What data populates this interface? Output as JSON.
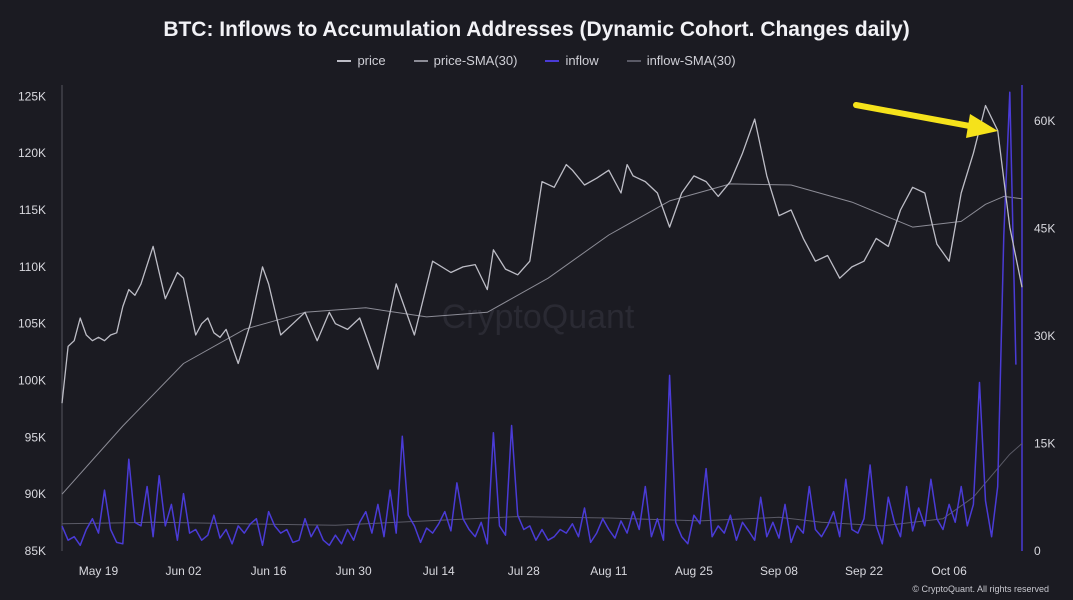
{
  "chart_data": {
    "type": "line",
    "title": "BTC: Inflows to Accumulation Addresses (Dynamic Cohort. Changes daily)",
    "legend": [
      "price",
      "price-SMA(30)",
      "inflow",
      "inflow-SMA(30)"
    ],
    "colors": {
      "price": "#bdbdc6",
      "price_sma": "#8c8c96",
      "inflow": "#4a3bd6",
      "inflow_sma": "#5a5a66",
      "arrow": "#f5e21b",
      "bg": "#1b1b22"
    },
    "x_ticks": [
      "May 19",
      "Jun 02",
      "Jun 16",
      "Jun 30",
      "Jul 14",
      "Jul 28",
      "Aug 11",
      "Aug 25",
      "Sep 08",
      "Sep 22",
      "Oct 06"
    ],
    "y_left_ticks": [
      "85K",
      "90K",
      "95K",
      "100K",
      "105K",
      "110K",
      "115K",
      "120K",
      "125K"
    ],
    "y_right_ticks": [
      "0",
      "15K",
      "30K",
      "45K",
      "60K"
    ],
    "y_left_range": [
      85000,
      126000
    ],
    "y_right_range": [
      0,
      65000
    ],
    "x_range_days": [
      0,
      158
    ],
    "series": [
      {
        "name": "price",
        "axis": "left",
        "x": [
          0,
          1,
          2,
          3,
          4,
          5,
          6,
          7,
          8,
          9,
          10,
          11,
          12,
          13,
          15,
          17,
          19,
          20,
          22,
          23,
          24,
          25,
          26,
          27,
          29,
          31,
          33,
          34,
          36,
          38,
          40,
          42,
          44,
          45,
          47,
          49,
          52,
          55,
          58,
          61,
          64,
          66,
          68,
          70,
          71,
          73,
          75,
          77,
          79,
          81,
          83,
          84,
          86,
          88,
          90,
          92,
          93,
          94,
          96,
          98,
          100,
          102,
          104,
          106,
          108,
          110,
          112,
          114,
          116,
          118,
          120,
          122,
          124,
          126,
          128,
          130,
          132,
          134,
          136,
          138,
          140,
          142,
          144,
          146,
          148,
          150,
          152,
          154,
          156,
          158
        ],
        "y": [
          98000,
          103000,
          103500,
          105500,
          104000,
          103500,
          103800,
          103500,
          104000,
          104200,
          106500,
          108000,
          107500,
          108500,
          111800,
          107200,
          109500,
          109000,
          104000,
          105000,
          105500,
          104200,
          103800,
          104500,
          101500,
          105000,
          110000,
          108500,
          104000,
          105000,
          106000,
          103500,
          106000,
          105000,
          104500,
          105500,
          101000,
          108500,
          104000,
          110500,
          109500,
          110000,
          110200,
          108000,
          111500,
          109800,
          109300,
          110500,
          117500,
          117000,
          119000,
          118500,
          117200,
          117800,
          118500,
          116500,
          119000,
          118000,
          117500,
          116500,
          113500,
          116500,
          118000,
          117500,
          116200,
          117500,
          120000,
          123000,
          118000,
          114500,
          115000,
          112500,
          110500,
          111000,
          109000,
          110000,
          110500,
          112500,
          111800,
          115000,
          117000,
          116500,
          112000,
          110500,
          116500,
          120000,
          124200,
          122000,
          113500,
          108200
        ]
      },
      {
        "name": "price-SMA(30)",
        "axis": "left",
        "x": [
          0,
          10,
          20,
          30,
          40,
          50,
          60,
          70,
          80,
          90,
          100,
          110,
          120,
          130,
          140,
          148,
          152,
          155,
          158
        ],
        "y": [
          90000,
          96000,
          101500,
          104500,
          106000,
          106400,
          105600,
          106000,
          109000,
          112800,
          115800,
          117300,
          117200,
          115700,
          113500,
          114000,
          115500,
          116200,
          116000
        ]
      },
      {
        "name": "inflow",
        "axis": "right",
        "x": [
          0,
          1,
          2,
          3,
          4,
          5,
          6,
          7,
          8,
          9,
          10,
          11,
          12,
          13,
          14,
          15,
          16,
          17,
          18,
          19,
          20,
          21,
          22,
          23,
          24,
          25,
          26,
          27,
          28,
          29,
          30,
          31,
          32,
          33,
          34,
          35,
          36,
          37,
          38,
          39,
          40,
          41,
          42,
          43,
          44,
          45,
          46,
          47,
          48,
          49,
          50,
          51,
          52,
          53,
          54,
          55,
          56,
          57,
          58,
          59,
          60,
          61,
          62,
          63,
          64,
          65,
          66,
          67,
          68,
          69,
          70,
          71,
          72,
          73,
          74,
          75,
          76,
          77,
          78,
          79,
          80,
          81,
          82,
          83,
          84,
          85,
          86,
          87,
          88,
          89,
          90,
          91,
          92,
          93,
          94,
          95,
          96,
          97,
          98,
          99,
          100,
          101,
          102,
          103,
          104,
          105,
          106,
          107,
          108,
          109,
          110,
          111,
          112,
          113,
          114,
          115,
          116,
          117,
          118,
          119,
          120,
          121,
          122,
          123,
          124,
          125,
          126,
          127,
          128,
          129,
          130,
          131,
          132,
          133,
          134,
          135,
          136,
          137,
          138,
          139,
          140,
          141,
          142,
          143,
          144,
          145,
          146,
          147,
          148,
          149,
          150,
          151,
          152,
          153,
          154,
          155,
          156,
          157
        ],
        "y": [
          3500,
          1500,
          2000,
          800,
          3000,
          4500,
          2500,
          8500,
          3000,
          1200,
          1000,
          12800,
          4000,
          3500,
          9000,
          2000,
          10500,
          3500,
          6500,
          1500,
          8000,
          2500,
          3000,
          1500,
          2200,
          5000,
          1800,
          3000,
          1000,
          3500,
          2500,
          3800,
          4500,
          800,
          5500,
          3500,
          2500,
          3000,
          1200,
          1500,
          4500,
          2000,
          3500,
          1500,
          800,
          2200,
          1000,
          3000,
          1500,
          4000,
          5500,
          2500,
          6500,
          2000,
          8500,
          2500,
          16000,
          5000,
          3500,
          1200,
          3200,
          2500,
          3800,
          5500,
          2800,
          9500,
          4500,
          3000,
          2000,
          4000,
          1000,
          16500,
          3500,
          2200,
          17500,
          5000,
          3000,
          3500,
          1500,
          3000,
          1500,
          2000,
          3000,
          2500,
          3800,
          2000,
          6000,
          1200,
          2500,
          4500,
          3000,
          1800,
          4200,
          2500,
          5500,
          3000,
          9000,
          2000,
          4500,
          1500,
          24500,
          4000,
          2000,
          1000,
          5000,
          3800,
          11500,
          2000,
          3500,
          2500,
          5000,
          1500,
          4000,
          2800,
          1500,
          7500,
          2000,
          4000,
          1800,
          6500,
          1200,
          3500,
          2500,
          9000,
          3000,
          2000,
          3500,
          5500,
          2000,
          10000,
          3000,
          2500,
          4500,
          12000,
          3500,
          1000,
          7500,
          4000,
          2000,
          9000,
          2800,
          6000,
          3500,
          10000,
          4500,
          3000,
          6500,
          4000,
          9000,
          3500,
          6500,
          23500,
          7000,
          2000,
          9000,
          44000,
          64000,
          26000
        ]
      },
      {
        "name": "inflow-SMA(30)",
        "axis": "right",
        "x": [
          0,
          15,
          30,
          45,
          60,
          75,
          90,
          105,
          118,
          125,
          135,
          145,
          150,
          153,
          156,
          158
        ],
        "y": [
          3800,
          4000,
          3800,
          3600,
          4200,
          4800,
          4600,
          4200,
          4700,
          4000,
          3500,
          4500,
          7500,
          10500,
          13500,
          15000
        ]
      }
    ]
  },
  "watermark": "CryptoQuant",
  "credit": "© CryptoQuant. All rights reserved"
}
